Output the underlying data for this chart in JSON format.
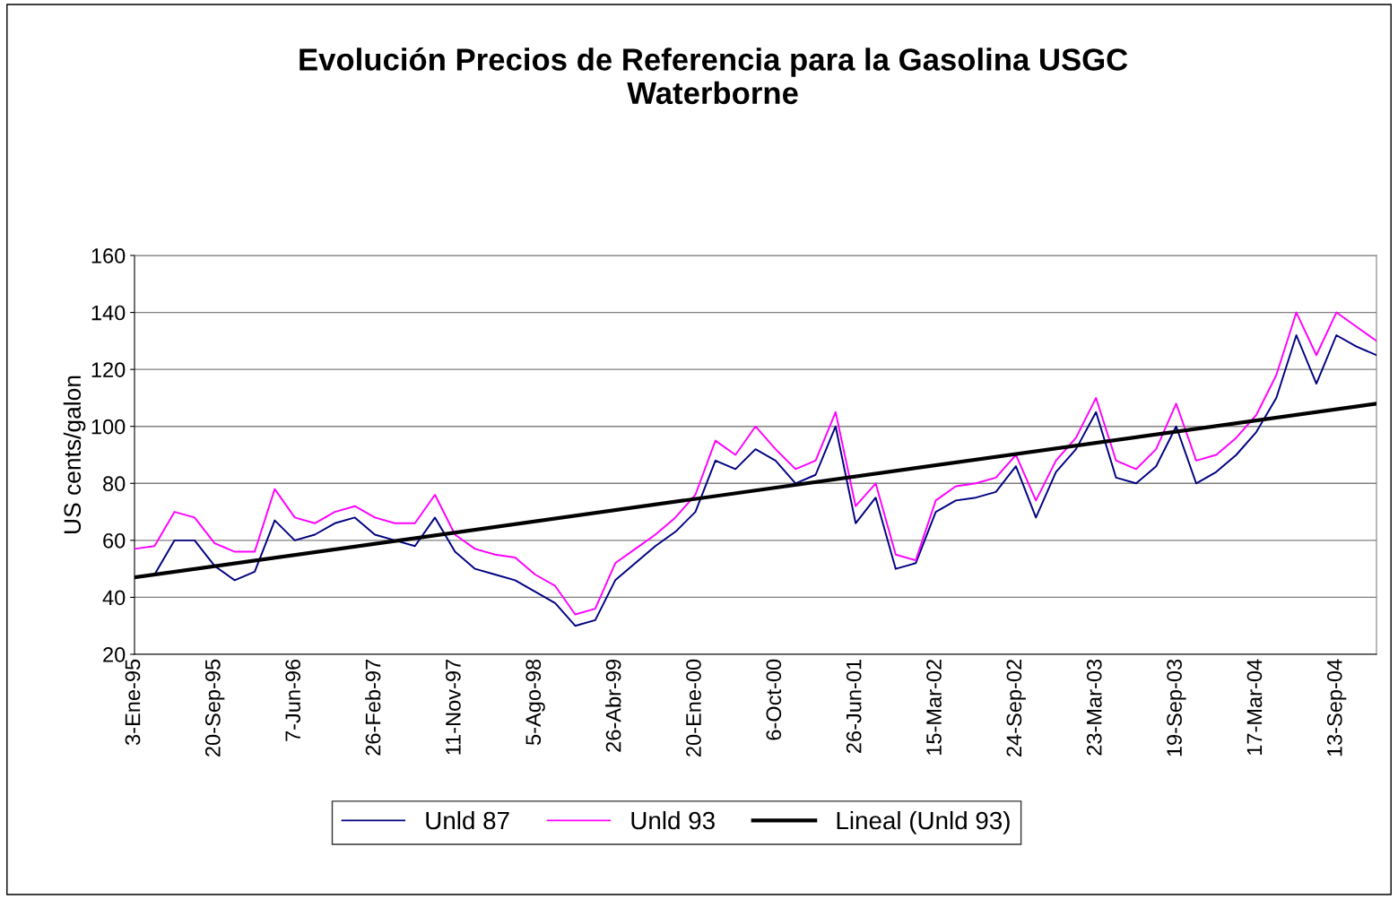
{
  "chart_data": {
    "type": "line",
    "title": "Evolución Precios de Referencia para la Gasolina USGC\nWaterborne",
    "ylabel": "US cents/galon",
    "categories": [
      "3-Ene-95",
      null,
      null,
      null,
      "20-Sep-95",
      null,
      null,
      null,
      "7-Jun-96",
      null,
      null,
      null,
      "26-Feb-97",
      null,
      null,
      null,
      "11-Nov-97",
      null,
      null,
      null,
      "5-Ago-98",
      null,
      null,
      null,
      "26-Abr-99",
      null,
      null,
      null,
      "20-Ene-00",
      null,
      null,
      null,
      "6-Oct-00",
      null,
      null,
      null,
      "26-Jun-01",
      null,
      null,
      null,
      "15-Mar-02",
      null,
      null,
      null,
      "24-Sep-02",
      null,
      null,
      null,
      "23-Mar-03",
      null,
      null,
      null,
      "19-Sep-03",
      null,
      null,
      null,
      "17-Mar-04",
      null,
      null,
      null,
      "13-Sep-04",
      null,
      null
    ],
    "series": [
      {
        "name": "Unld 87",
        "color": "#000080",
        "values": [
          47,
          48,
          60,
          60,
          51,
          46,
          49,
          67,
          60,
          62,
          66,
          68,
          62,
          60,
          58,
          68,
          56,
          50,
          48,
          46,
          42,
          38,
          30,
          32,
          46,
          52,
          58,
          63,
          70,
          88,
          85,
          92,
          88,
          80,
          83,
          100,
          66,
          75,
          50,
          52,
          70,
          74,
          75,
          77,
          86,
          68,
          84,
          92,
          105,
          82,
          80,
          86,
          100,
          80,
          84,
          90,
          98,
          110,
          132,
          115,
          132,
          128,
          125
        ]
      },
      {
        "name": "Unld 93",
        "color": "#ff00ff",
        "values": [
          57,
          58,
          70,
          68,
          59,
          56,
          56,
          78,
          68,
          66,
          70,
          72,
          68,
          66,
          66,
          76,
          62,
          57,
          55,
          54,
          48,
          44,
          34,
          36,
          52,
          57,
          62,
          68,
          76,
          95,
          90,
          100,
          92,
          85,
          88,
          105,
          72,
          80,
          55,
          53,
          74,
          79,
          80,
          82,
          90,
          74,
          88,
          96,
          110,
          88,
          85,
          92,
          108,
          88,
          90,
          96,
          104,
          118,
          140,
          125,
          140,
          135,
          130
        ]
      },
      {
        "name": "Lineal (Unld 93)",
        "color": "#000000",
        "values": [
          47,
          null,
          null,
          null,
          null,
          null,
          null,
          null,
          null,
          null,
          null,
          null,
          null,
          null,
          null,
          null,
          null,
          null,
          null,
          null,
          null,
          null,
          null,
          null,
          null,
          null,
          null,
          null,
          null,
          null,
          null,
          null,
          null,
          null,
          null,
          null,
          null,
          null,
          null,
          null,
          null,
          null,
          null,
          null,
          null,
          null,
          null,
          null,
          null,
          null,
          null,
          null,
          null,
          null,
          null,
          null,
          null,
          null,
          null,
          null,
          null,
          null,
          108
        ]
      }
    ],
    "ylim": [
      20,
      160
    ],
    "yticks": [
      20,
      40,
      60,
      80,
      100,
      120,
      140,
      160
    ],
    "grid": "y",
    "legend": "bottom",
    "marker": "none",
    "line_style": "solid"
  }
}
